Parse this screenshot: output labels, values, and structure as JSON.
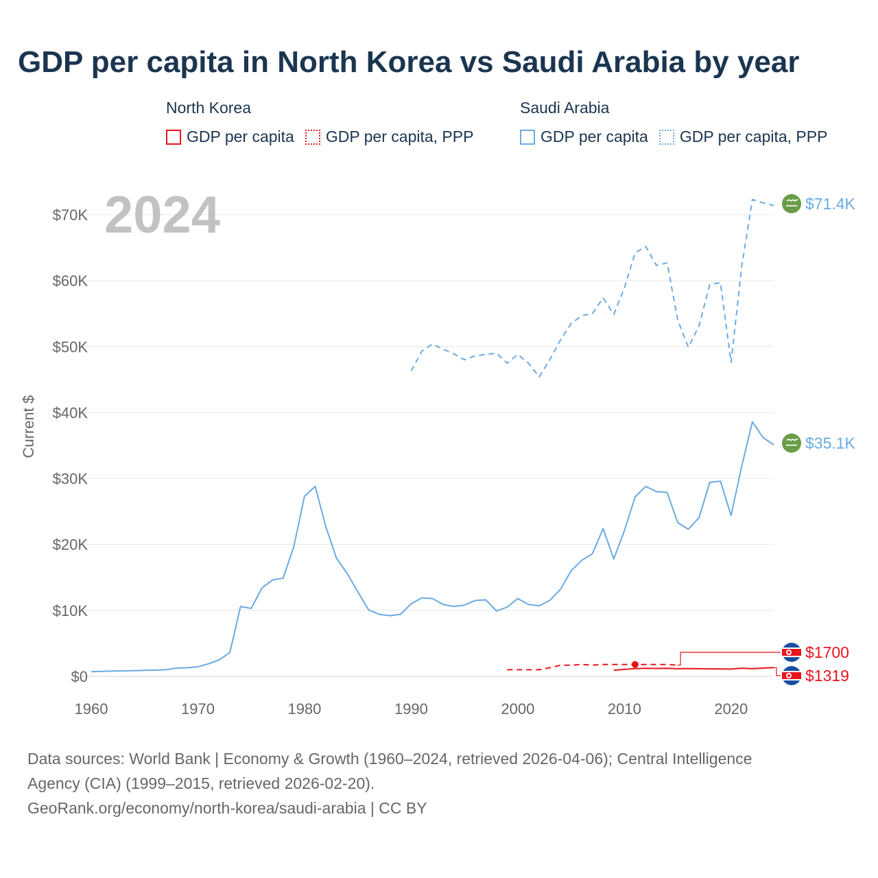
{
  "header": {
    "title": "GDP per capita in North Korea vs Saudi Arabia by year"
  },
  "legend": {
    "groups": [
      {
        "title": "North Korea",
        "items": [
          {
            "label": "GDP per capita",
            "style": "solid"
          },
          {
            "label": "GDP per capita, PPP",
            "style": "dotted"
          }
        ],
        "color": "#e8141b"
      },
      {
        "title": "Saudi Arabia",
        "items": [
          {
            "label": "GDP per capita",
            "style": "solid"
          },
          {
            "label": "GDP per capita, PPP",
            "style": "dotted"
          }
        ],
        "color": "#6aaae2"
      }
    ]
  },
  "year_label": "2024",
  "footer": {
    "line1": "Data sources: World Bank | Economy & Growth (1960–2024, retrieved 2026-04-06); Central Intelligence",
    "line2": "Agency (CIA) (1999–2015, retrieved 2026-02-20).",
    "line3": "GeoRank.org/economy/north-korea/saudi-arabia | CC BY"
  },
  "chart_data": {
    "type": "line",
    "title": "GDP per capita in North Korea vs Saudi Arabia by year",
    "xlabel": "",
    "ylabel": "Current $",
    "xlim": [
      1960,
      2024
    ],
    "ylim": [
      0,
      75000
    ],
    "grid": true,
    "x_ticks": [
      {
        "value": 1960,
        "label": "1960"
      },
      {
        "value": 1970,
        "label": "1970"
      },
      {
        "value": 1980,
        "label": "1980"
      },
      {
        "value": 1990,
        "label": "1990"
      },
      {
        "value": 2000,
        "label": "2000"
      },
      {
        "value": 2010,
        "label": "2010"
      },
      {
        "value": 2020,
        "label": "2020"
      }
    ],
    "y_ticks": [
      {
        "value": 0,
        "label": "$0"
      },
      {
        "value": 10000,
        "label": "$10K"
      },
      {
        "value": 20000,
        "label": "$20K"
      },
      {
        "value": 30000,
        "label": "$30K"
      },
      {
        "value": 40000,
        "label": "$40K"
      },
      {
        "value": 50000,
        "label": "$50K"
      },
      {
        "value": 60000,
        "label": "$60K"
      },
      {
        "value": 70000,
        "label": "$70K"
      }
    ],
    "series": [
      {
        "name": "Saudi Arabia GDP per capita",
        "color": "#6aaae2",
        "dash": "solid",
        "end_label": "$35.1K",
        "flag": "Saudi Arabia",
        "points": [
          [
            1960,
            700
          ],
          [
            1961,
            750
          ],
          [
            1962,
            800
          ],
          [
            1963,
            820
          ],
          [
            1964,
            850
          ],
          [
            1965,
            900
          ],
          [
            1966,
            950
          ],
          [
            1967,
            1000
          ],
          [
            1968,
            1250
          ],
          [
            1969,
            1300
          ],
          [
            1970,
            1450
          ],
          [
            1971,
            1900
          ],
          [
            1972,
            2500
          ],
          [
            1973,
            3600
          ],
          [
            1974,
            10600
          ],
          [
            1975,
            10300
          ],
          [
            1976,
            13400
          ],
          [
            1977,
            14600
          ],
          [
            1978,
            14900
          ],
          [
            1979,
            19700
          ],
          [
            1980,
            27300
          ],
          [
            1981,
            28800
          ],
          [
            1982,
            22700
          ],
          [
            1983,
            17900
          ],
          [
            1984,
            15600
          ],
          [
            1985,
            12800
          ],
          [
            1986,
            10100
          ],
          [
            1987,
            9400
          ],
          [
            1988,
            9200
          ],
          [
            1989,
            9400
          ],
          [
            1990,
            11000
          ],
          [
            1991,
            11900
          ],
          [
            1992,
            11800
          ],
          [
            1993,
            10900
          ],
          [
            1994,
            10600
          ],
          [
            1995,
            10800
          ],
          [
            1996,
            11500
          ],
          [
            1997,
            11600
          ],
          [
            1998,
            9900
          ],
          [
            1999,
            10500
          ],
          [
            2000,
            11800
          ],
          [
            2001,
            10900
          ],
          [
            2002,
            10700
          ],
          [
            2003,
            11500
          ],
          [
            2004,
            13200
          ],
          [
            2005,
            16000
          ],
          [
            2006,
            17600
          ],
          [
            2007,
            18600
          ],
          [
            2008,
            22400
          ],
          [
            2009,
            17800
          ],
          [
            2010,
            22100
          ],
          [
            2011,
            27200
          ],
          [
            2012,
            28800
          ],
          [
            2013,
            28000
          ],
          [
            2014,
            27900
          ],
          [
            2015,
            23300
          ],
          [
            2016,
            22300
          ],
          [
            2017,
            24100
          ],
          [
            2018,
            29400
          ],
          [
            2019,
            29600
          ],
          [
            2020,
            24400
          ],
          [
            2021,
            31900
          ],
          [
            2022,
            38600
          ],
          [
            2023,
            36200
          ],
          [
            2024,
            35100
          ]
        ]
      },
      {
        "name": "Saudi Arabia GDP per capita, PPP",
        "color": "#6aaae2",
        "dash": "dashed",
        "end_label": "$71.4K",
        "flag": "Saudi Arabia",
        "points": [
          [
            1990,
            46300
          ],
          [
            1991,
            49300
          ],
          [
            1992,
            50400
          ],
          [
            1993,
            49600
          ],
          [
            1994,
            48900
          ],
          [
            1995,
            48000
          ],
          [
            1996,
            48600
          ],
          [
            1997,
            48800
          ],
          [
            1998,
            49000
          ],
          [
            1999,
            47500
          ],
          [
            2000,
            48800
          ],
          [
            2001,
            47500
          ],
          [
            2002,
            45400
          ],
          [
            2003,
            48000
          ],
          [
            2004,
            51000
          ],
          [
            2005,
            53500
          ],
          [
            2006,
            54700
          ],
          [
            2007,
            55000
          ],
          [
            2008,
            57400
          ],
          [
            2009,
            54900
          ],
          [
            2010,
            58900
          ],
          [
            2011,
            64200
          ],
          [
            2012,
            65200
          ],
          [
            2013,
            62300
          ],
          [
            2014,
            62700
          ],
          [
            2015,
            54000
          ],
          [
            2016,
            49900
          ],
          [
            2017,
            53200
          ],
          [
            2018,
            59400
          ],
          [
            2019,
            59700
          ],
          [
            2020,
            47600
          ],
          [
            2021,
            62200
          ],
          [
            2022,
            72300
          ],
          [
            2023,
            71800
          ],
          [
            2024,
            71400
          ]
        ]
      },
      {
        "name": "North Korea GDP per capita",
        "color": "#e8141b",
        "dash": "solid",
        "end_label": "$1319",
        "flag": "North Korea",
        "points": [
          [
            2009,
            930
          ],
          [
            2010,
            1050
          ],
          [
            2011,
            1180
          ],
          [
            2012,
            1220
          ],
          [
            2013,
            1200
          ],
          [
            2014,
            1220
          ],
          [
            2015,
            1150
          ],
          [
            2016,
            1160
          ],
          [
            2017,
            1150
          ],
          [
            2018,
            1130
          ],
          [
            2019,
            1110
          ],
          [
            2020,
            1100
          ],
          [
            2021,
            1240
          ],
          [
            2022,
            1150
          ],
          [
            2023,
            1250
          ],
          [
            2024,
            1319
          ]
        ]
      },
      {
        "name": "North Korea GDP per capita, PPP",
        "color": "#e8141b",
        "dash": "dashed",
        "end_label": "$1700",
        "flag": "North Korea",
        "points": [
          [
            1999,
            1000
          ],
          [
            2000,
            1000
          ],
          [
            2001,
            1000
          ],
          [
            2002,
            1000
          ],
          [
            2003,
            1300
          ],
          [
            2004,
            1700
          ],
          [
            2005,
            1700
          ],
          [
            2006,
            1800
          ],
          [
            2007,
            1700
          ],
          [
            2008,
            1800
          ],
          [
            2009,
            1800
          ],
          [
            2010,
            1800
          ],
          [
            2011,
            1800
          ],
          [
            2012,
            1800
          ],
          [
            2013,
            1800
          ],
          [
            2014,
            1800
          ],
          [
            2015,
            1700
          ]
        ],
        "highlight_point": [
          2011,
          1800
        ]
      }
    ]
  }
}
